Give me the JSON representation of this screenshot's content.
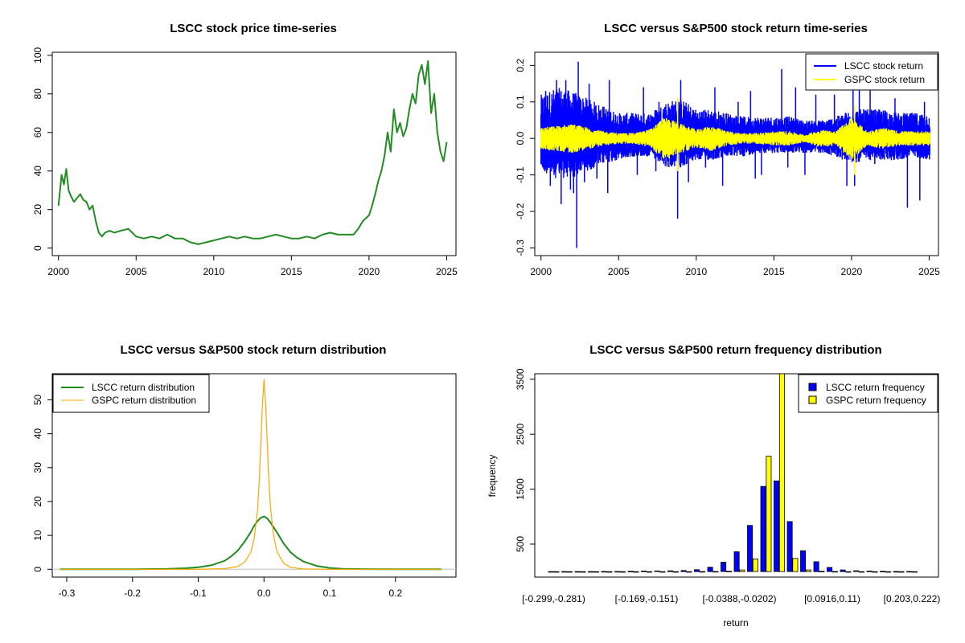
{
  "colors": {
    "lscc_price": "#228B22",
    "lscc_return": "#0000FF",
    "gspc_return": "#FFFF00",
    "lscc_density": "#228B22",
    "gspc_density": "#FFA500",
    "lscc_bar": "#0000FF",
    "gspc_bar": "#FFFF00"
  },
  "chart_data": [
    {
      "type": "line",
      "title": "LSCC stock price time-series",
      "xlabel": "",
      "ylabel": "",
      "xlim": [
        1999.6,
        2025.6
      ],
      "ylim": [
        -3.9,
        101.6
      ],
      "xticks": [
        2000,
        2005,
        2010,
        2015,
        2020,
        2025
      ],
      "yticks": [
        0,
        20,
        40,
        60,
        80,
        100
      ],
      "series": [
        {
          "x": [
            2000.0,
            2000.1,
            2000.2,
            2000.35,
            2000.5,
            2000.65,
            2000.8,
            2001.0,
            2001.2,
            2001.4,
            2001.6,
            2001.8,
            2002.0,
            2002.2,
            2002.4,
            2002.6,
            2002.8,
            2003.0,
            2003.3,
            2003.6,
            2004.0,
            2004.5,
            2005.0,
            2005.5,
            2006.0,
            2006.5,
            2007.0,
            2007.5,
            2008.0,
            2008.5,
            2009.0,
            2009.5,
            2010.0,
            2010.5,
            2011.0,
            2011.5,
            2012.0,
            2012.5,
            2013.0,
            2013.5,
            2014.0,
            2014.5,
            2015.0,
            2015.5,
            2016.0,
            2016.5,
            2017.0,
            2017.5,
            2018.0,
            2018.5,
            2019.0,
            2019.3,
            2019.6,
            2020.0,
            2020.2,
            2020.4,
            2020.6,
            2020.8,
            2021.0,
            2021.2,
            2021.4,
            2021.6,
            2021.8,
            2022.0,
            2022.2,
            2022.4,
            2022.6,
            2022.8,
            2023.0,
            2023.2,
            2023.4,
            2023.6,
            2023.8,
            2024.0,
            2024.2,
            2024.4,
            2024.6,
            2024.8,
            2025.0
          ],
          "y": [
            22,
            30,
            38,
            33,
            41,
            30,
            27,
            24,
            26,
            28,
            25,
            24,
            20,
            22,
            14,
            8,
            6,
            8,
            9,
            8,
            9,
            10,
            6,
            5,
            6,
            5,
            7,
            5,
            5,
            3,
            2,
            3,
            4,
            5,
            6,
            5,
            6,
            5,
            5,
            6,
            7,
            6,
            5,
            5,
            6,
            5,
            7,
            8,
            7,
            7,
            7,
            10,
            14,
            17,
            22,
            28,
            35,
            40,
            48,
            60,
            50,
            72,
            60,
            65,
            58,
            62,
            72,
            80,
            75,
            90,
            95,
            85,
            97,
            70,
            80,
            60,
            50,
            45,
            55
          ],
          "color_key": "lscc_price"
        }
      ]
    },
    {
      "type": "line",
      "title": "LSCC versus S&P500 stock return time-series",
      "xlabel": "",
      "ylabel": "",
      "xlim": [
        1999.6,
        2025.6
      ],
      "ylim": [
        -0.321,
        0.236
      ],
      "xticks": [
        2000,
        2005,
        2010,
        2015,
        2020,
        2025
      ],
      "yticks": [
        -0.3,
        -0.2,
        -0.1,
        0.0,
        0.1,
        0.2
      ],
      "ytick_labels": [
        "-0.3",
        "-0.2",
        "-0.1",
        "0.0",
        "0.1",
        "0.2"
      ],
      "legend": {
        "position": "top-right",
        "entries": [
          "LSCC stock return",
          "GSPC stock return"
        ]
      },
      "series": [
        {
          "name": "LSCC stock return",
          "color_key": "lscc_return",
          "band_x": [
            2000,
            2001,
            2002,
            2003,
            2004,
            2005,
            2006,
            2007,
            2008,
            2009,
            2010,
            2011,
            2012,
            2013,
            2014,
            2015,
            2016,
            2017,
            2018,
            2019,
            2020,
            2021,
            2022,
            2023,
            2024,
            2025
          ],
          "band_hi": [
            0.12,
            0.14,
            0.13,
            0.11,
            0.09,
            0.07,
            0.07,
            0.07,
            0.1,
            0.11,
            0.08,
            0.08,
            0.07,
            0.06,
            0.06,
            0.06,
            0.06,
            0.05,
            0.05,
            0.06,
            0.08,
            0.08,
            0.08,
            0.07,
            0.07,
            0.07
          ],
          "band_lo": [
            -0.09,
            -0.11,
            -0.11,
            -0.09,
            -0.07,
            -0.06,
            -0.05,
            -0.05,
            -0.08,
            -0.08,
            -0.06,
            -0.06,
            -0.05,
            -0.05,
            -0.04,
            -0.04,
            -0.04,
            -0.04,
            -0.04,
            -0.05,
            -0.07,
            -0.06,
            -0.06,
            -0.06,
            -0.05,
            -0.06
          ],
          "spikes": [
            [
              2000.3,
              0.13
            ],
            [
              2000.6,
              -0.13
            ],
            [
              2001.0,
              0.16
            ],
            [
              2001.3,
              -0.18
            ],
            [
              2001.6,
              0.16
            ],
            [
              2001.9,
              -0.14
            ],
            [
              2002.1,
              -0.15
            ],
            [
              2002.3,
              -0.3
            ],
            [
              2002.4,
              0.21
            ],
            [
              2002.8,
              -0.12
            ],
            [
              2003.1,
              0.15
            ],
            [
              2003.6,
              -0.11
            ],
            [
              2004.4,
              0.16
            ],
            [
              2004.3,
              -0.15
            ],
            [
              2006.2,
              -0.1
            ],
            [
              2006.6,
              0.14
            ],
            [
              2007.4,
              -0.09
            ],
            [
              2007.6,
              0.1
            ],
            [
              2008.8,
              -0.22
            ],
            [
              2009.0,
              0.16
            ],
            [
              2009.5,
              -0.12
            ],
            [
              2010.6,
              -0.08
            ],
            [
              2011.2,
              0.14
            ],
            [
              2011.7,
              -0.13
            ],
            [
              2012.7,
              0.1
            ],
            [
              2013.5,
              0.13
            ],
            [
              2013.8,
              -0.11
            ],
            [
              2014.2,
              -0.1
            ],
            [
              2015.5,
              0.19
            ],
            [
              2015.9,
              -0.08
            ],
            [
              2016.4,
              0.14
            ],
            [
              2017.0,
              -0.1
            ],
            [
              2017.7,
              0.12
            ],
            [
              2018.9,
              0.12
            ],
            [
              2019.7,
              -0.13
            ],
            [
              2020.2,
              -0.13
            ],
            [
              2020.1,
              0.18
            ],
            [
              2020.5,
              0.2
            ],
            [
              2021.2,
              0.16
            ],
            [
              2021.5,
              -0.07
            ],
            [
              2022.8,
              0.11
            ],
            [
              2023.6,
              -0.19
            ],
            [
              2024.4,
              -0.17
            ],
            [
              2024.7,
              0.1
            ]
          ]
        },
        {
          "name": "GSPC stock return",
          "color_key": "gspc_return",
          "band_x": [
            2000,
            2001,
            2002,
            2003,
            2004,
            2005,
            2006,
            2007,
            2008,
            2009,
            2010,
            2011,
            2012,
            2013,
            2014,
            2015,
            2016,
            2017,
            2018,
            2019,
            2020,
            2021,
            2022,
            2023,
            2024,
            2025
          ],
          "band_hi": [
            0.03,
            0.035,
            0.04,
            0.03,
            0.02,
            0.015,
            0.015,
            0.025,
            0.06,
            0.04,
            0.025,
            0.035,
            0.02,
            0.015,
            0.015,
            0.02,
            0.02,
            0.01,
            0.025,
            0.02,
            0.06,
            0.02,
            0.03,
            0.02,
            0.02,
            0.02
          ],
          "band_lo": [
            -0.03,
            -0.035,
            -0.04,
            -0.03,
            -0.02,
            -0.015,
            -0.015,
            -0.025,
            -0.06,
            -0.04,
            -0.025,
            -0.035,
            -0.02,
            -0.015,
            -0.015,
            -0.02,
            -0.02,
            -0.01,
            -0.025,
            -0.02,
            -0.06,
            -0.02,
            -0.03,
            -0.02,
            -0.02,
            -0.02
          ],
          "spikes": [
            [
              2008.8,
              0.11
            ],
            [
              2008.8,
              -0.09
            ],
            [
              2020.2,
              0.09
            ],
            [
              2020.2,
              -0.1
            ]
          ]
        }
      ]
    },
    {
      "type": "line",
      "title": "LSCC versus S&P500 stock return distribution",
      "xlabel": "",
      "ylabel": "",
      "xlim": [
        -0.322,
        0.292
      ],
      "ylim": [
        -2.3,
        57.7
      ],
      "xticks": [
        -0.3,
        -0.2,
        -0.1,
        0.0,
        0.1,
        0.2
      ],
      "xtick_labels": [
        "-0.3",
        "-0.2",
        "-0.1",
        "0.0",
        "0.1",
        "0.2"
      ],
      "yticks": [
        0,
        10,
        20,
        30,
        40,
        50
      ],
      "legend": {
        "position": "top-left",
        "entries": [
          "LSCC return distribution",
          "GSPC return distribution"
        ]
      },
      "series": [
        {
          "name": "LSCC return distribution",
          "color_key": "lscc_density",
          "x": [
            -0.31,
            -0.2,
            -0.15,
            -0.12,
            -0.1,
            -0.08,
            -0.06,
            -0.05,
            -0.04,
            -0.03,
            -0.02,
            -0.015,
            -0.01,
            -0.005,
            0.0,
            0.005,
            0.01,
            0.02,
            0.03,
            0.04,
            0.05,
            0.06,
            0.08,
            0.1,
            0.12,
            0.15,
            0.2,
            0.27
          ],
          "y": [
            0,
            0,
            0.1,
            0.3,
            0.6,
            1.2,
            2.5,
            3.8,
            5.5,
            8.0,
            11.0,
            12.8,
            14.2,
            15.2,
            15.6,
            15.0,
            13.8,
            10.8,
            7.6,
            5.1,
            3.5,
            2.3,
            1.0,
            0.4,
            0.15,
            0.05,
            0,
            0
          ]
        },
        {
          "name": "GSPC return distribution",
          "color_key": "gspc_density",
          "x": [
            -0.31,
            -0.1,
            -0.06,
            -0.04,
            -0.03,
            -0.02,
            -0.015,
            -0.01,
            -0.0075,
            -0.005,
            -0.0025,
            0.0,
            0.0025,
            0.005,
            0.0075,
            0.01,
            0.015,
            0.02,
            0.03,
            0.04,
            0.06,
            0.1,
            0.27
          ],
          "y": [
            0,
            0,
            0.2,
            0.8,
            2.0,
            5.0,
            9.0,
            17.0,
            25.0,
            36.0,
            48.0,
            56.0,
            49.0,
            37.0,
            26.0,
            18.0,
            9.5,
            5.0,
            1.8,
            0.6,
            0.1,
            0,
            0
          ]
        }
      ]
    },
    {
      "type": "bar",
      "title": "LSCC versus S&P500 return frequency distribution",
      "xlabel": "return",
      "ylabel": "frequency",
      "ylim": [
        -100,
        3600
      ],
      "yticks": [
        500,
        1500,
        2500,
        3500
      ],
      "legend": {
        "position": "top-right",
        "entries": [
          "LSCC return frequency",
          "GSPC return frequency"
        ]
      },
      "categories": [
        "[-0.299,-0.281)",
        "[-0.281,-0.262)",
        "[-0.262,-0.244)",
        "[-0.244,-0.225)",
        "[-0.225,-0.207)",
        "[-0.207,-0.188)",
        "[-0.188,-0.169)",
        "[-0.169,-0.151)",
        "[-0.151,-0.132)",
        "[-0.132,-0.114)",
        "[-0.114,-0.0953)",
        "[-0.0953,-0.0767)",
        "[-0.0767,-0.0581)",
        "[-0.0581,-0.0388)",
        "[-0.0388,-0.0202)",
        "[-0.0202,-0.00155)",
        "[-0.00155,0.0171)",
        "[0.0171,0.0357)",
        "[0.0357,0.0543)",
        "[0.0543,0.073)",
        "[0.073,0.0916)",
        "[0.0916,0.11)",
        "[0.11,0.129)",
        "[0.129,0.147)",
        "[0.147,0.166)",
        "[0.166,0.185)",
        "[0.185,0.203)",
        "[0.203,0.222)"
      ],
      "shown_category_labels": [
        "[-0.299,-0.281)",
        "[-0.169,-0.151)",
        "[-0.0388,-0.0202)",
        "[0.0916,0.11)",
        "[0.203,0.222)"
      ],
      "series": [
        {
          "name": "LSCC return frequency",
          "color_key": "lscc_bar",
          "values": [
            1,
            1,
            1,
            1,
            2,
            3,
            5,
            10,
            12,
            14,
            20,
            35,
            80,
            170,
            360,
            840,
            1550,
            1650,
            910,
            380,
            180,
            75,
            30,
            15,
            10,
            6,
            3,
            2
          ]
        },
        {
          "name": "GSPC return frequency",
          "color_key": "gspc_bar",
          "values": [
            0,
            0,
            0,
            0,
            0,
            0,
            0,
            0,
            0,
            0,
            0,
            1,
            2,
            5,
            30,
            230,
            2100,
            3600,
            240,
            30,
            5,
            2,
            0,
            0,
            0,
            0,
            0,
            0
          ]
        }
      ]
    }
  ]
}
